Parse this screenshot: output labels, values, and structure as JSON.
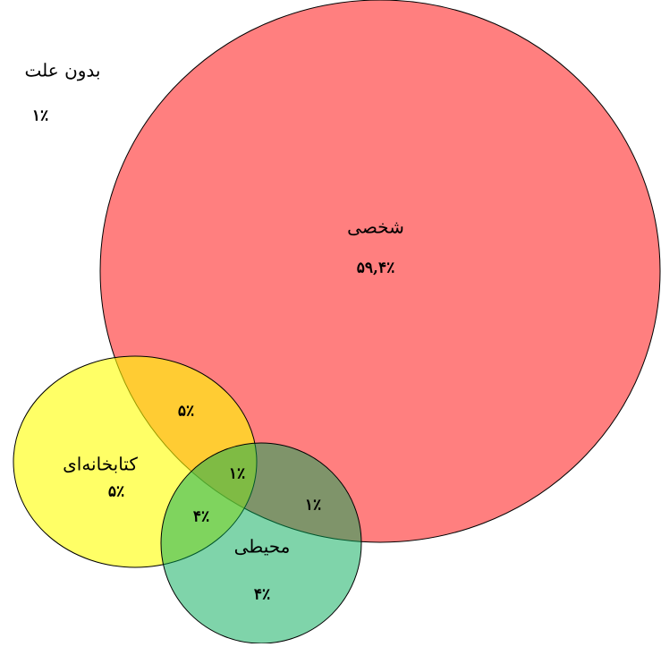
{
  "sets": [
    {
      "label": "شخصی",
      "value": "۵۹,۴٪"
    },
    {
      "label": "کتابخانه‌ای",
      "value": "۵٪"
    },
    {
      "label": "محیطی",
      "value": "۴٪"
    }
  ],
  "outside": {
    "label": "بدون علت",
    "value": "۱٪"
  },
  "overlaps": {
    "personal_library": "۵٪",
    "all_three": "۱٪",
    "personal_environment": "۱٪",
    "library_environment": "۴٪"
  }
}
